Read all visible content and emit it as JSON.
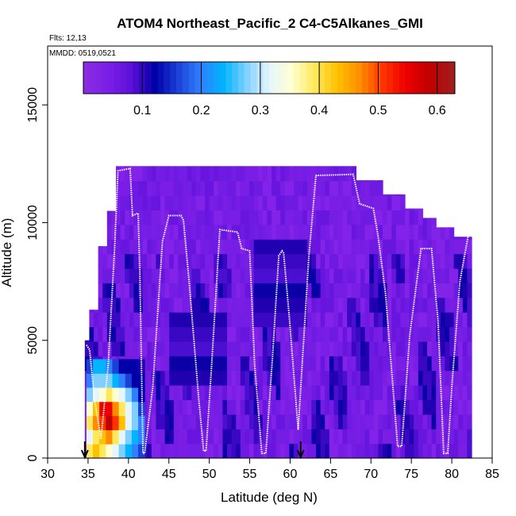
{
  "chart_data": {
    "type": "heatmap",
    "title": "ATOM4 Northeast_Pacific_2 C4-C5Alkanes_GMI",
    "flights_label": "Flts: 12,13",
    "date_label": "MMDD: 0519,0521",
    "xlabel": "Latitude (deg N)",
    "ylabel": "Altitude (m)",
    "xlim": [
      30,
      85
    ],
    "ylim": [
      0,
      17500
    ],
    "x_ticks": [
      "30",
      "35",
      "40",
      "45",
      "50",
      "55",
      "60",
      "65",
      "70",
      "75",
      "80",
      "85"
    ],
    "y_ticks": [
      "0",
      "5000",
      "10000",
      "15000"
    ],
    "colorbar": {
      "range": [
        0,
        0.63
      ],
      "ticks": [
        "0.1",
        "0.2",
        "0.3",
        "0.4",
        "0.5",
        "0.6"
      ],
      "tick_values": [
        0.1,
        0.2,
        0.3,
        0.4,
        0.5,
        0.6
      ],
      "colors": [
        "#8a2be2",
        "#7a1ee8",
        "#5a0fd8",
        "#0000a8",
        "#1c3fd6",
        "#2f80ff",
        "#00b4ff",
        "#7fd0ff",
        "#e6f6ff",
        "#ffffd0",
        "#ffe85a",
        "#ffc000",
        "#ff8c00",
        "#ff3300",
        "#ee0000",
        "#c00000",
        "#a51c1c"
      ]
    },
    "arrows_lat": [
      34.6,
      61.3
    ],
    "flight_track": [
      [
        34.8,
        4800
      ],
      [
        35.2,
        4600
      ],
      [
        35.8,
        2500
      ],
      [
        36.6,
        800
      ],
      [
        37.5,
        4000
      ],
      [
        38.3,
        9000
      ],
      [
        38.7,
        12200
      ],
      [
        40.2,
        12300
      ],
      [
        40.5,
        10300
      ],
      [
        41.2,
        10400
      ],
      [
        41.4,
        8000
      ],
      [
        41.8,
        200
      ],
      [
        42.0,
        200
      ],
      [
        43.0,
        3000
      ],
      [
        44.2,
        9200
      ],
      [
        45.0,
        10300
      ],
      [
        46.5,
        10300
      ],
      [
        46.8,
        10100
      ],
      [
        47.5,
        7500
      ],
      [
        48.7,
        2500
      ],
      [
        49.3,
        300
      ],
      [
        49.6,
        300
      ],
      [
        50.3,
        4000
      ],
      [
        51.3,
        9700
      ],
      [
        53.5,
        9600
      ],
      [
        54.0,
        8900
      ],
      [
        55.0,
        8800
      ],
      [
        55.6,
        4000
      ],
      [
        56.5,
        200
      ],
      [
        57.0,
        200
      ],
      [
        57.8,
        4200
      ],
      [
        58.6,
        8600
      ],
      [
        59.0,
        8800
      ],
      [
        59.2,
        8700
      ],
      [
        59.9,
        6000
      ],
      [
        61.0,
        1200
      ],
      [
        61.5,
        4000
      ],
      [
        62.3,
        8500
      ],
      [
        63.2,
        12000
      ],
      [
        67.8,
        12050
      ],
      [
        68.6,
        10800
      ],
      [
        70.3,
        10600
      ],
      [
        70.9,
        9400
      ],
      [
        71.8,
        7000
      ],
      [
        73.3,
        500
      ],
      [
        73.8,
        500
      ],
      [
        74.8,
        5200
      ],
      [
        76.2,
        8900
      ],
      [
        77.5,
        8900
      ],
      [
        78.3,
        5800
      ],
      [
        79.0,
        200
      ],
      [
        79.5,
        200
      ],
      [
        80.0,
        3000
      ],
      [
        81.0,
        7500
      ],
      [
        82.0,
        9400
      ]
    ]
  }
}
